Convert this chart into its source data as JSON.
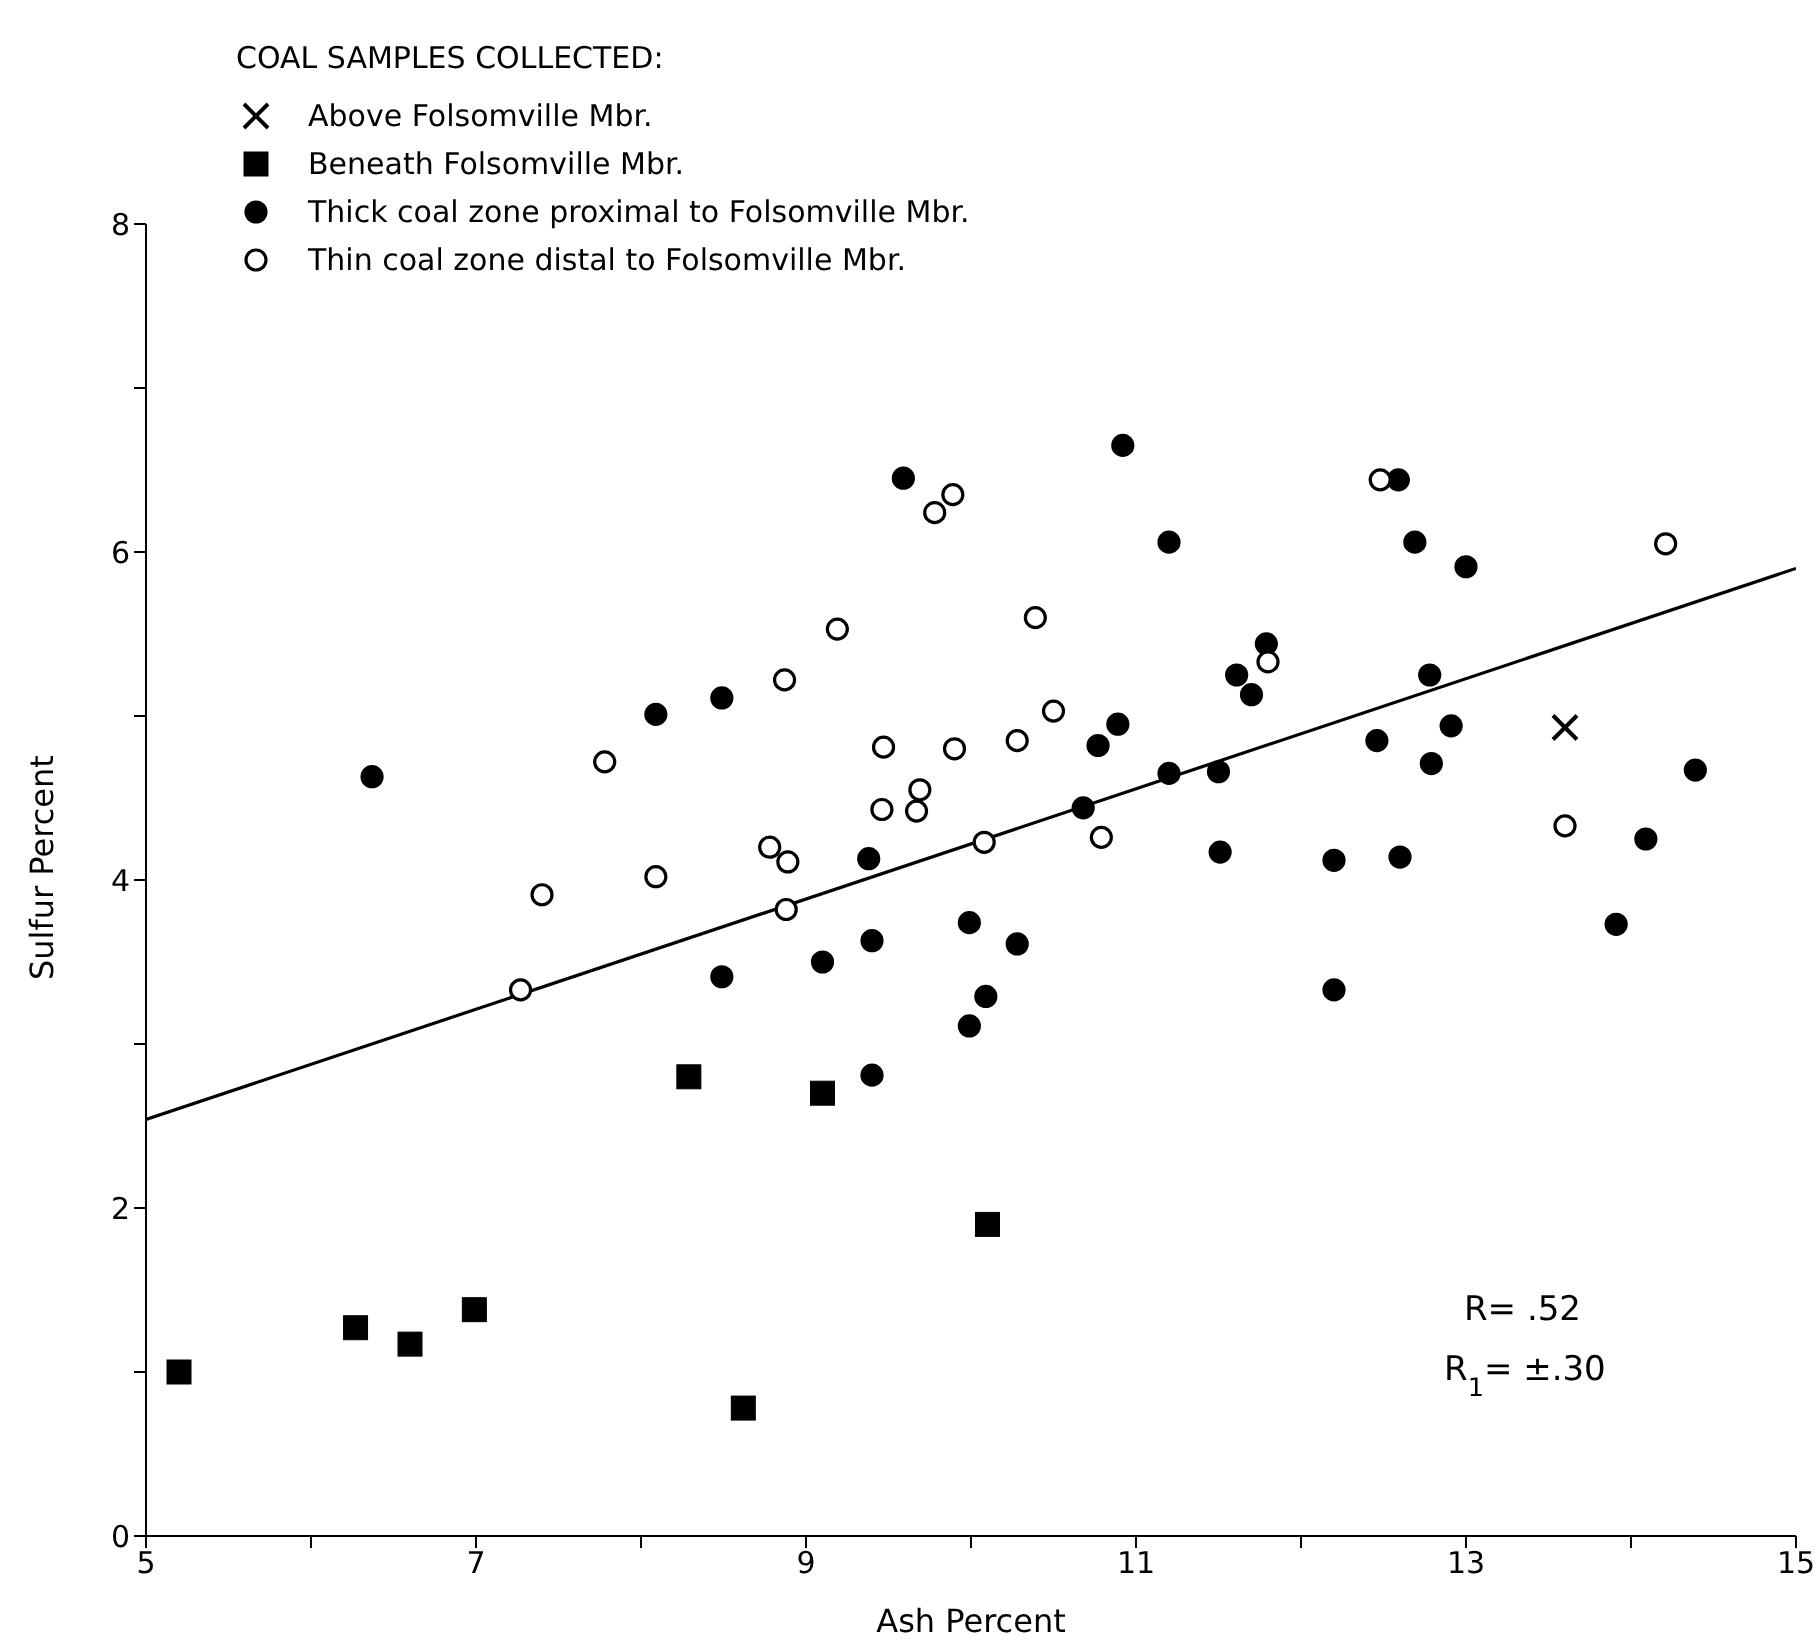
{
  "chart_data": {
    "type": "scatter",
    "xlabel": "Ash Percent",
    "ylabel": "Sulfur Percent",
    "legend_title": "COAL SAMPLES COLLECTED:",
    "legend": "top left",
    "xlim": [
      5,
      15
    ],
    "xticks": [
      5,
      {
        "value": 6,
        "label": null
      },
      7,
      {
        "value": 8,
        "label": null
      },
      9,
      {
        "value": 10,
        "label": null
      },
      11,
      {
        "value": 12,
        "label": null
      },
      13,
      {
        "value": 14,
        "label": null
      },
      15
    ],
    "ylim": [
      0,
      8
    ],
    "yticks": [
      0,
      {
        "value": 1,
        "label": null
      },
      2,
      {
        "value": 3,
        "label": null
      },
      4,
      {
        "value": 5,
        "label": null
      },
      6,
      {
        "value": 7,
        "label": null
      },
      8
    ],
    "series": [
      {
        "name": "Above Folsomville Mbr.",
        "color": "#000000",
        "marker": "cross",
        "x": [
          13.6
        ],
        "values": [
          4.93
        ]
      },
      {
        "name": "Beneath Folsomville Mbr.",
        "color": "#000000",
        "marker": "square",
        "x": [
          5.2,
          6.27,
          6.6,
          6.99,
          8.29,
          8.62,
          9.1,
          10.1
        ],
        "values": [
          1.0,
          1.27,
          1.17,
          1.38,
          2.8,
          0.78,
          2.7,
          1.9
        ]
      },
      {
        "name": "Thick coal zone proximal to Folsomville Mbr.",
        "color": "#000000",
        "marker": "circle",
        "x": [
          9.4,
          9.59,
          6.37,
          8.09,
          8.49,
          9.38,
          8.49,
          9.1,
          9.4,
          10.92,
          12.59,
          11.2,
          12.69,
          13.0,
          11.79,
          11.61,
          11.7,
          12.78,
          10.89,
          10.77,
          12.91,
          12.46,
          12.79,
          14.39,
          11.2,
          11.5,
          10.68,
          11.51,
          12.2,
          12.6,
          14.09,
          9.99,
          10.28,
          13.91,
          10.09,
          9.99,
          12.2
        ],
        "values": [
          2.81,
          6.45,
          4.63,
          5.01,
          5.11,
          4.13,
          3.41,
          3.5,
          3.63,
          6.65,
          6.44,
          6.06,
          6.06,
          5.91,
          5.44,
          5.25,
          5.13,
          5.25,
          4.95,
          4.82,
          4.94,
          4.85,
          4.71,
          4.67,
          4.65,
          4.66,
          4.44,
          4.17,
          4.12,
          4.14,
          4.25,
          3.74,
          3.61,
          3.73,
          3.29,
          3.11,
          3.33
        ]
      },
      {
        "name": "Thin coal zone distal to Folsomville Mbr.",
        "color": "#ffffff",
        "marker": "circle",
        "x": [
          9.78,
          9.89,
          9.19,
          8.87,
          7.78,
          9.47,
          9.9,
          9.69,
          9.67,
          9.46,
          8.78,
          8.89,
          8.09,
          7.4,
          8.88,
          7.27,
          12.48,
          14.21,
          10.39,
          11.8,
          10.5,
          10.28,
          10.08,
          10.79,
          13.6
        ],
        "values": [
          6.24,
          6.35,
          5.53,
          5.22,
          4.72,
          4.81,
          4.8,
          4.55,
          4.42,
          4.43,
          4.2,
          4.11,
          4.02,
          3.91,
          3.82,
          3.33,
          6.44,
          6.05,
          5.6,
          5.33,
          5.03,
          4.85,
          4.23,
          4.26,
          4.33
        ]
      },
      {
        "type": "line",
        "color": "#000000",
        "marker": "none",
        "line_style": "solid",
        "x": [
          5,
          15
        ],
        "values": [
          2.54,
          5.9
        ]
      }
    ],
    "annotations": [
      "R= .52",
      "R$_{1}$= ±.30"
    ]
  }
}
